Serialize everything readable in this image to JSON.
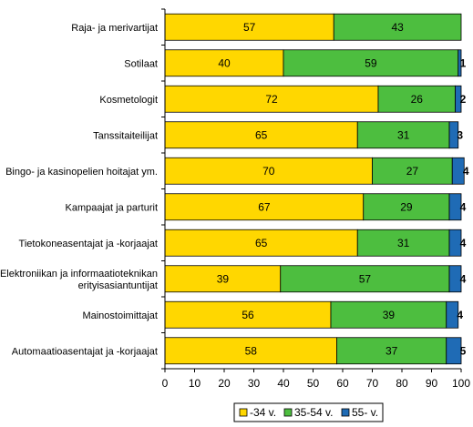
{
  "chart_data": {
    "type": "bar",
    "orientation": "horizontal",
    "stacked": true,
    "categories": [
      [
        "Raja- ja merivartijat"
      ],
      [
        "Sotilaat"
      ],
      [
        "Kosmetologit"
      ],
      [
        "Tanssitaiteilijat"
      ],
      [
        "Bingo- ja kasinopelien hoitajat ym."
      ],
      [
        "Kampaajat ja parturit"
      ],
      [
        "Tietokoneasentajat ja -korjaajat"
      ],
      [
        "Elektroniikan ja informaatioteknikan",
        "erityisasiantuntijat"
      ],
      [
        "Mainostoimittajat"
      ],
      [
        "Automaatioasentajat ja -korjaajat"
      ]
    ],
    "series": [
      {
        "name": "-34 v.",
        "color": "#FFD700",
        "values": [
          57,
          40,
          72,
          65,
          70,
          67,
          65,
          39,
          56,
          58
        ]
      },
      {
        "name": "35-54 v.",
        "color": "#4DBE3F",
        "values": [
          43,
          59,
          26,
          31,
          27,
          29,
          31,
          57,
          39,
          37
        ]
      },
      {
        "name": "55- v.",
        "color": "#1F6BB5",
        "values": [
          0,
          1,
          2,
          3,
          4,
          4,
          4,
          4,
          4,
          5
        ]
      }
    ],
    "value_labels": [
      [
        "57",
        "43",
        ""
      ],
      [
        "40",
        "59",
        "1"
      ],
      [
        "72",
        "26",
        "2"
      ],
      [
        "65",
        "31",
        "3"
      ],
      [
        "70",
        "27",
        "4"
      ],
      [
        "67",
        "29",
        "4"
      ],
      [
        "65",
        "31",
        "4"
      ],
      [
        "39",
        "57",
        "4"
      ],
      [
        "56",
        "39",
        "4"
      ],
      [
        "58",
        "37",
        "5"
      ]
    ],
    "xlim": [
      0,
      100
    ],
    "xticks": [
      "0",
      "10",
      "20",
      "30",
      "40",
      "50",
      "60",
      "70",
      "80",
      "90",
      "100"
    ],
    "legend_position": "bottom",
    "grid": false
  }
}
